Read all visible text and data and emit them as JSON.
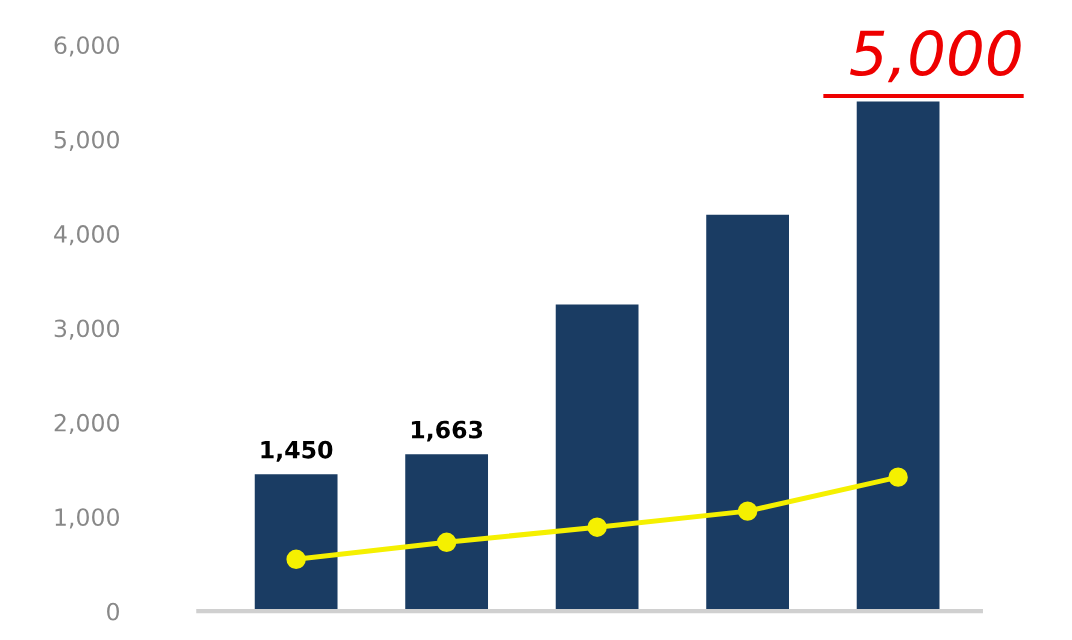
{
  "chart_data": {
    "type": "bar",
    "categories": [
      null,
      null,
      null,
      null,
      null
    ],
    "series": [
      {
        "color": "#1a3c63",
        "values": [
          1450,
          1663,
          3250,
          4200,
          5400
        ],
        "value_labels": [
          "1,450",
          "1,663",
          null,
          null,
          null
        ]
      },
      {
        "type": "line",
        "color": "#f5f000",
        "values": [
          550,
          730,
          890,
          1060,
          1420
        ]
      }
    ],
    "marker": "circle",
    "ylim": [
      0,
      6000
    ],
    "yticks": [
      {
        "value": 0,
        "label": "0"
      },
      {
        "value": 1000,
        "label": "1,000"
      },
      {
        "value": 2000,
        "label": "2,000"
      },
      {
        "value": 3000,
        "label": "3,000"
      },
      {
        "value": 4000,
        "label": "4,000"
      },
      {
        "value": 5000,
        "label": "5,000"
      },
      {
        "value": 6000,
        "label": "6,000"
      }
    ],
    "annotations": [
      "5,000"
    ]
  }
}
